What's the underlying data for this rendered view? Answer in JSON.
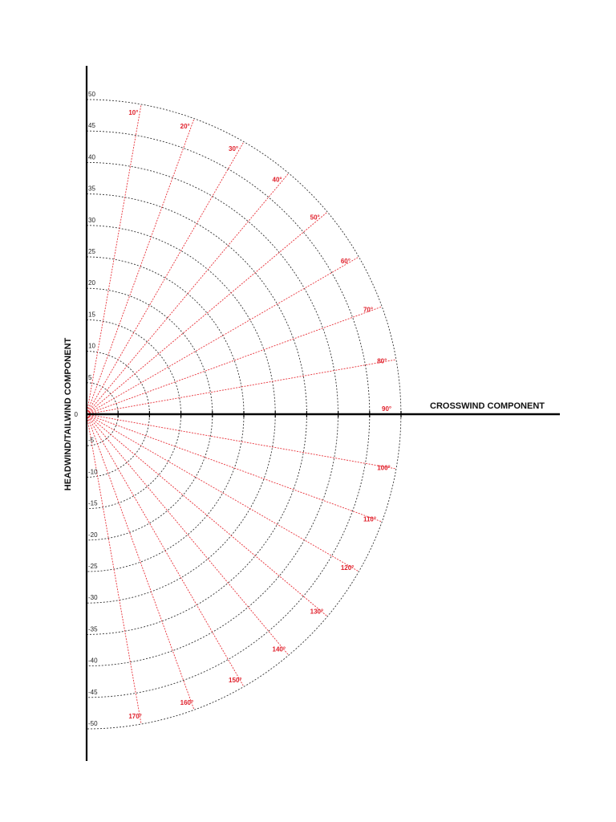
{
  "diagram": {
    "horizontal_axis_title": "CROSSWIND COMPONENT",
    "vertical_axis_title": "HEADWIND/TAILWIND COMPONENT",
    "vertical_tick_labels": [
      "50",
      "45",
      "40",
      "35",
      "30",
      "25",
      "20",
      "15",
      "10",
      "5",
      "0",
      "-5",
      "-10",
      "-15",
      "-20",
      "-25",
      "-30",
      "-35",
      "-40",
      "-45",
      "-50"
    ],
    "vertical_tick_values": [
      50,
      45,
      40,
      35,
      30,
      25,
      20,
      15,
      10,
      5,
      0,
      -5,
      -10,
      -15,
      -20,
      -25,
      -30,
      -35,
      -40,
      -45,
      -50
    ],
    "ring_values": [
      5,
      10,
      15,
      20,
      25,
      30,
      35,
      40,
      45,
      50
    ],
    "angle_labels": [
      "10°",
      "20°",
      "30°",
      "40°",
      "50°",
      "60°",
      "70°",
      "80°",
      "90°",
      "100°",
      "110°",
      "120°",
      "130°",
      "140°",
      "150°",
      "160°",
      "170°"
    ],
    "angle_values": [
      10,
      20,
      30,
      40,
      50,
      60,
      70,
      80,
      90,
      100,
      110,
      120,
      130,
      140,
      150,
      160,
      170
    ],
    "colors": {
      "axis": "#000000",
      "ring": "#333333",
      "radial": "#e8323a",
      "angle_label": "#e01f2a",
      "text": "#222222"
    }
  }
}
